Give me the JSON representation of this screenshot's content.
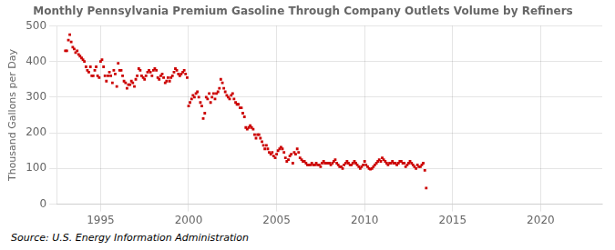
{
  "chart_data": {
    "type": "scatter",
    "title": "Monthly Pennsylvania Premium Gasoline Through Company Outlets Volume by Refiners",
    "ylabel": "Thousand Gallons per Day",
    "source": "Source: U.S. Energy Information Administration",
    "color": "#cc0000",
    "marker": "square",
    "grid": true,
    "xlim": [
      1992.5,
      2023.5
    ],
    "ylim": [
      0,
      500
    ],
    "xticks": [
      1995,
      2000,
      2005,
      2010,
      2015,
      2020
    ],
    "yticks": [
      0,
      100,
      200,
      300,
      400,
      500
    ],
    "x": [
      1993.0,
      1993.08,
      1993.17,
      1993.25,
      1993.33,
      1993.42,
      1993.5,
      1993.58,
      1993.67,
      1993.75,
      1993.83,
      1993.92,
      1994.0,
      1994.08,
      1994.17,
      1994.25,
      1994.33,
      1994.42,
      1994.5,
      1994.58,
      1994.67,
      1994.75,
      1994.83,
      1994.92,
      1995.0,
      1995.08,
      1995.17,
      1995.25,
      1995.33,
      1995.42,
      1995.5,
      1995.58,
      1995.67,
      1995.75,
      1995.83,
      1995.92,
      1996.0,
      1996.08,
      1996.17,
      1996.25,
      1996.33,
      1996.42,
      1996.5,
      1996.58,
      1996.67,
      1996.75,
      1996.83,
      1996.92,
      1997.0,
      1997.08,
      1997.17,
      1997.25,
      1997.33,
      1997.42,
      1997.5,
      1997.58,
      1997.67,
      1997.75,
      1997.83,
      1997.92,
      1998.0,
      1998.08,
      1998.17,
      1998.25,
      1998.33,
      1998.42,
      1998.5,
      1998.58,
      1998.67,
      1998.75,
      1998.83,
      1998.92,
      1999.0,
      1999.08,
      1999.17,
      1999.25,
      1999.33,
      1999.42,
      1999.5,
      1999.58,
      1999.67,
      1999.75,
      1999.83,
      1999.92,
      2000.0,
      2000.08,
      2000.17,
      2000.25,
      2000.33,
      2000.42,
      2000.5,
      2000.58,
      2000.67,
      2000.75,
      2000.83,
      2000.92,
      2001.0,
      2001.08,
      2001.17,
      2001.25,
      2001.33,
      2001.42,
      2001.5,
      2001.58,
      2001.67,
      2001.75,
      2001.83,
      2001.92,
      2002.0,
      2002.08,
      2002.17,
      2002.25,
      2002.33,
      2002.42,
      2002.5,
      2002.58,
      2002.67,
      2002.75,
      2002.83,
      2002.92,
      2003.0,
      2003.08,
      2003.17,
      2003.25,
      2003.33,
      2003.42,
      2003.5,
      2003.58,
      2003.67,
      2003.75,
      2003.83,
      2003.92,
      2004.0,
      2004.08,
      2004.17,
      2004.25,
      2004.33,
      2004.42,
      2004.5,
      2004.58,
      2004.67,
      2004.75,
      2004.83,
      2004.92,
      2005.0,
      2005.08,
      2005.17,
      2005.25,
      2005.33,
      2005.42,
      2005.5,
      2005.58,
      2005.67,
      2005.75,
      2005.83,
      2005.92,
      2006.0,
      2006.08,
      2006.17,
      2006.25,
      2006.33,
      2006.42,
      2006.5,
      2006.58,
      2006.67,
      2006.75,
      2006.83,
      2006.92,
      2007.0,
      2007.08,
      2007.17,
      2007.25,
      2007.33,
      2007.42,
      2007.5,
      2007.58,
      2007.67,
      2007.75,
      2007.83,
      2007.92,
      2008.0,
      2008.08,
      2008.17,
      2008.25,
      2008.33,
      2008.42,
      2008.5,
      2008.58,
      2008.67,
      2008.75,
      2008.83,
      2008.92,
      2009.0,
      2009.08,
      2009.17,
      2009.25,
      2009.33,
      2009.42,
      2009.5,
      2009.58,
      2009.67,
      2009.75,
      2009.83,
      2009.92,
      2010.0,
      2010.08,
      2010.17,
      2010.25,
      2010.33,
      2010.42,
      2010.5,
      2010.58,
      2010.67,
      2010.75,
      2010.83,
      2010.92,
      2011.0,
      2011.08,
      2011.17,
      2011.25,
      2011.33,
      2011.42,
      2011.5,
      2011.58,
      2011.67,
      2011.75,
      2011.83,
      2011.92,
      2012.0,
      2012.08,
      2012.17,
      2012.25,
      2012.33,
      2012.42,
      2012.5,
      2012.58,
      2012.67,
      2012.75,
      2012.83,
      2012.92,
      2013.0,
      2013.08,
      2013.17,
      2013.25,
      2013.33,
      2013.42,
      2013.5
    ],
    "values": [
      430,
      430,
      460,
      475,
      455,
      440,
      435,
      425,
      430,
      420,
      415,
      410,
      405,
      400,
      385,
      375,
      370,
      385,
      360,
      360,
      375,
      385,
      360,
      355,
      400,
      405,
      385,
      360,
      345,
      360,
      370,
      360,
      340,
      375,
      365,
      330,
      395,
      375,
      375,
      360,
      345,
      340,
      325,
      335,
      335,
      345,
      340,
      330,
      350,
      360,
      380,
      375,
      360,
      355,
      350,
      360,
      370,
      375,
      370,
      360,
      375,
      380,
      375,
      355,
      350,
      360,
      365,
      355,
      340,
      345,
      355,
      345,
      355,
      360,
      370,
      380,
      375,
      365,
      360,
      365,
      370,
      375,
      365,
      355,
      275,
      285,
      295,
      305,
      300,
      310,
      315,
      300,
      285,
      275,
      240,
      255,
      300,
      295,
      310,
      285,
      300,
      310,
      295,
      310,
      315,
      325,
      350,
      340,
      325,
      315,
      305,
      300,
      295,
      305,
      310,
      295,
      285,
      280,
      280,
      270,
      270,
      255,
      245,
      215,
      210,
      215,
      220,
      215,
      210,
      195,
      185,
      195,
      195,
      185,
      175,
      165,
      155,
      165,
      155,
      145,
      140,
      145,
      135,
      130,
      140,
      150,
      155,
      160,
      155,
      145,
      130,
      120,
      125,
      135,
      140,
      115,
      145,
      140,
      155,
      145,
      130,
      125,
      120,
      120,
      115,
      110,
      110,
      110,
      115,
      110,
      110,
      115,
      110,
      110,
      105,
      115,
      120,
      115,
      115,
      115,
      115,
      110,
      115,
      120,
      125,
      115,
      110,
      105,
      105,
      100,
      110,
      115,
      120,
      115,
      110,
      110,
      115,
      120,
      115,
      110,
      105,
      100,
      105,
      110,
      120,
      110,
      105,
      100,
      98,
      100,
      105,
      110,
      115,
      120,
      125,
      120,
      130,
      125,
      120,
      115,
      110,
      115,
      115,
      120,
      115,
      115,
      110,
      115,
      120,
      120,
      115,
      115,
      105,
      110,
      115,
      120,
      115,
      110,
      105,
      100,
      110,
      105,
      105,
      110,
      115,
      95,
      45
    ]
  }
}
